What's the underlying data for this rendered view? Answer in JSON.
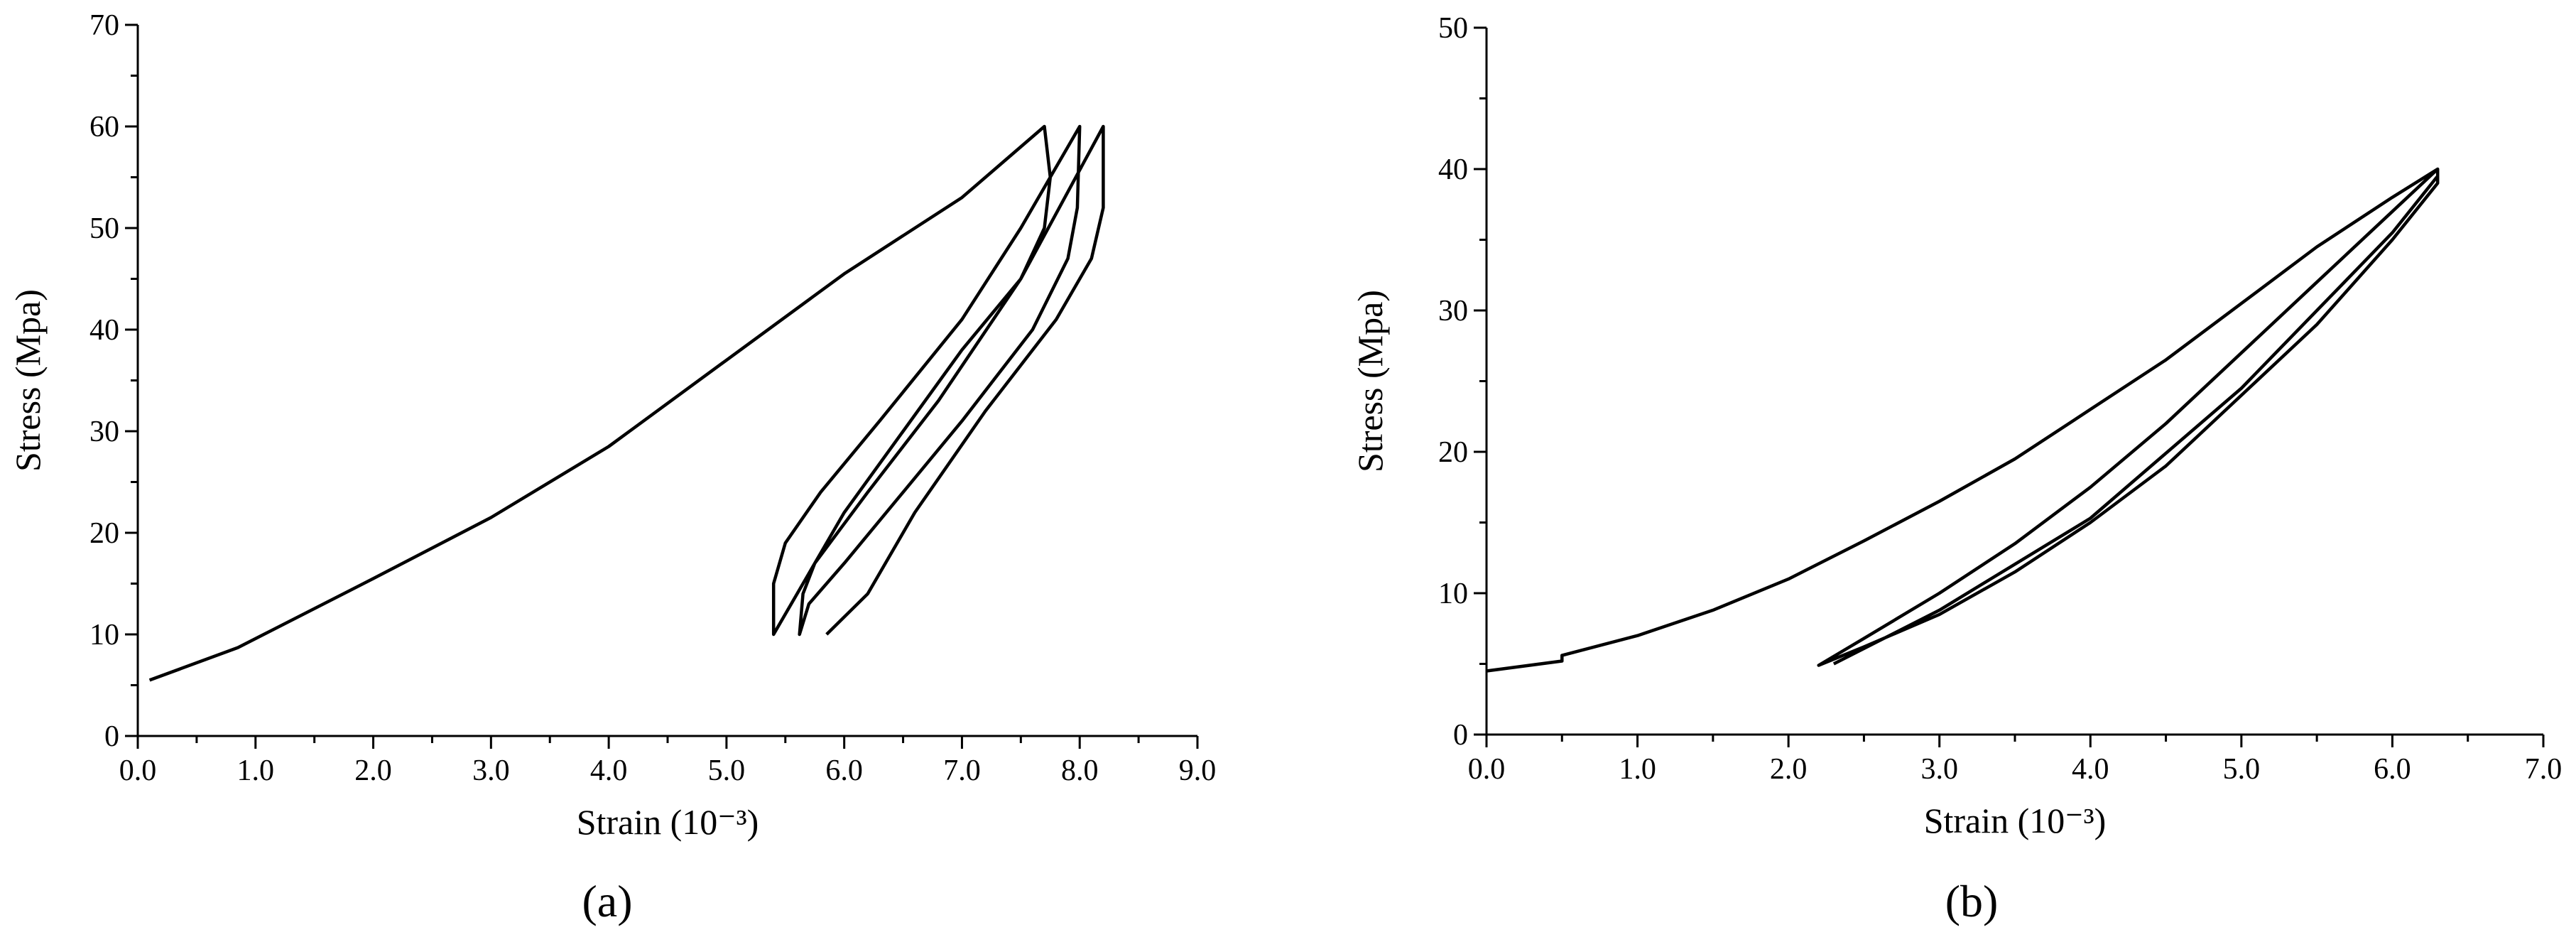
{
  "chart_data": [
    {
      "type": "line",
      "label": "(a)",
      "xlabel": "Strain (10⁻³)",
      "ylabel": "Stress (Mpa)",
      "xlim": [
        0,
        9
      ],
      "xticks": [
        {
          "value": 0,
          "label": "0.0"
        },
        {
          "value": 1,
          "label": "1.0"
        },
        {
          "value": 2,
          "label": "2.0"
        },
        {
          "value": 3,
          "label": "3.0"
        },
        {
          "value": 4,
          "label": "4.0"
        },
        {
          "value": 5,
          "label": "5.0"
        },
        {
          "value": 6,
          "label": "6.0"
        },
        {
          "value": 7,
          "label": "7.0"
        },
        {
          "value": 8,
          "label": "8.0"
        },
        {
          "value": 9,
          "label": "9.0"
        }
      ],
      "minor_xticks": [
        0.5,
        1.5,
        2.5,
        3.5,
        4.5,
        5.5,
        6.5,
        7.5,
        8.5
      ],
      "ylim": [
        0,
        70
      ],
      "yticks": [
        0,
        10,
        20,
        30,
        40,
        50,
        60,
        70
      ],
      "minor_yticks": [
        5,
        15,
        25,
        35,
        45,
        55,
        65
      ],
      "series": [
        {
          "color": "#000000",
          "x": [
            0.1,
            0.85,
            2.0,
            3.0,
            4.0,
            5.0,
            6.0,
            7.0,
            7.7,
            7.75,
            7.7,
            7.5,
            7.0,
            6.5,
            6.0,
            5.7,
            5.5,
            5.4,
            5.4,
            5.5,
            5.8,
            6.3,
            7.0,
            7.5,
            8.0,
            7.98,
            7.9,
            7.6,
            7.0,
            6.5,
            6.0,
            5.7,
            5.62,
            5.65,
            5.75,
            6.2,
            6.8,
            7.5,
            8.2,
            8.2,
            8.1,
            7.8,
            7.2,
            6.6,
            6.2,
            5.85
          ],
          "y": [
            5.5,
            8.7,
            15.5,
            21.5,
            28.5,
            37,
            45.5,
            53,
            60,
            55,
            50,
            45,
            38,
            30,
            22,
            16,
            12,
            10,
            15,
            19,
            24,
            31,
            41,
            50,
            60,
            52,
            47,
            40,
            31,
            24,
            17,
            13,
            10,
            14,
            17,
            24,
            33,
            45,
            60,
            52,
            47,
            41,
            32,
            22,
            14,
            10
          ]
        }
      ]
    },
    {
      "type": "line",
      "label": "(b)",
      "xlabel": "Strain (10⁻³)",
      "ylabel": "Stress (Mpa)",
      "xlim": [
        0,
        7
      ],
      "xticks": [
        {
          "value": 0,
          "label": "0.0"
        },
        {
          "value": 1,
          "label": "1.0"
        },
        {
          "value": 2,
          "label": "2.0"
        },
        {
          "value": 3,
          "label": "3.0"
        },
        {
          "value": 4,
          "label": "4.0"
        },
        {
          "value": 5,
          "label": "5.0"
        },
        {
          "value": 6,
          "label": "6.0"
        },
        {
          "value": 7,
          "label": "7.0"
        }
      ],
      "minor_xticks": [
        0.5,
        1.5,
        2.5,
        3.5,
        4.5,
        5.5,
        6.5
      ],
      "ylim": [
        0,
        50
      ],
      "yticks": [
        0,
        10,
        20,
        30,
        40,
        50
      ],
      "minor_yticks": [
        5,
        15,
        25,
        35,
        45
      ],
      "series": [
        {
          "color": "#000000",
          "x": [
            0,
            0.5,
            0.5,
            1.0,
            1.5,
            2.0,
            2.5,
            3.0,
            3.5,
            4.0,
            4.5,
            5.0,
            5.5,
            6.0,
            6.3,
            6.3,
            6.0,
            5.5,
            5.0,
            4.5,
            4.0,
            3.5,
            3.0,
            2.5,
            2.2,
            2.5,
            3.0,
            3.5,
            4.0,
            4.5,
            5.0,
            5.5,
            6.0,
            6.3,
            6.3,
            6.0,
            5.0,
            4.0,
            3.0,
            2.3
          ],
          "y": [
            4.5,
            5.2,
            5.6,
            7,
            8.8,
            11,
            13.7,
            16.5,
            19.5,
            23,
            26.5,
            30.5,
            34.5,
            38,
            40,
            39,
            35,
            29,
            24,
            19,
            15,
            11.5,
            8.5,
            6.2,
            4.9,
            6.8,
            10,
            13.5,
            17.5,
            22,
            27,
            32,
            37,
            40,
            39.5,
            35.5,
            24.5,
            15.3,
            8.8,
            5
          ]
        }
      ]
    }
  ]
}
